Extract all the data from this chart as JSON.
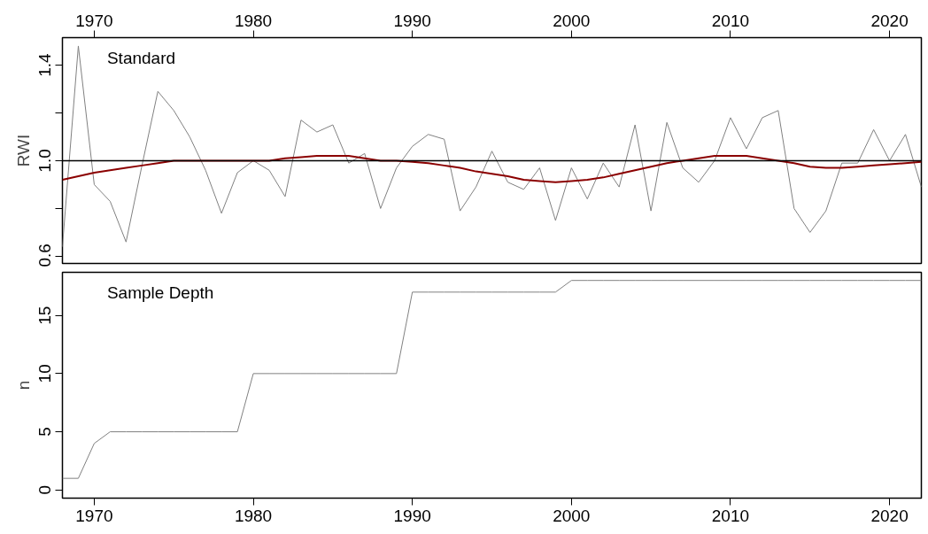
{
  "chart_data": [
    {
      "type": "line",
      "ylabel": "RWI",
      "annotations": [
        "Standard"
      ],
      "x": [
        1968,
        1969,
        1970,
        1971,
        1972,
        1973,
        1974,
        1975,
        1976,
        1977,
        1978,
        1979,
        1980,
        1981,
        1982,
        1983,
        1984,
        1985,
        1986,
        1987,
        1988,
        1989,
        1990,
        1991,
        1992,
        1993,
        1994,
        1995,
        1996,
        1997,
        1998,
        1999,
        2000,
        2001,
        2002,
        2003,
        2004,
        2005,
        2006,
        2007,
        2008,
        2009,
        2010,
        2011,
        2012,
        2013,
        2014,
        2015,
        2016,
        2017,
        2018,
        2019,
        2020,
        2021,
        2022
      ],
      "series": [
        {
          "color": "#808080",
          "values": [
            0.64,
            1.48,
            0.9,
            0.83,
            0.66,
            0.98,
            1.29,
            1.21,
            1.1,
            0.96,
            0.78,
            0.95,
            1.0,
            0.96,
            0.85,
            1.17,
            1.12,
            1.15,
            0.99,
            1.03,
            0.8,
            0.97,
            1.06,
            1.11,
            1.09,
            0.79,
            0.89,
            1.04,
            0.91,
            0.88,
            0.97,
            0.75,
            0.97,
            0.84,
            0.99,
            0.89,
            1.15,
            0.79,
            1.16,
            0.97,
            0.91,
            1.0,
            1.18,
            1.05,
            1.18,
            1.21,
            0.8,
            0.7,
            0.79,
            0.99,
            0.99,
            1.13,
            1.0,
            1.11,
            0.89
          ]
        },
        {
          "color": "#8b0000",
          "values": [
            0.92,
            0.935,
            0.95,
            0.96,
            0.97,
            0.98,
            0.99,
            1.0,
            1.0,
            1.0,
            1.0,
            1.0,
            1.0,
            1.0,
            1.01,
            1.015,
            1.02,
            1.02,
            1.02,
            1.01,
            1.0,
            1.0,
            0.995,
            0.99,
            0.98,
            0.97,
            0.955,
            0.945,
            0.935,
            0.92,
            0.915,
            0.91,
            0.915,
            0.92,
            0.93,
            0.945,
            0.96,
            0.975,
            0.99,
            1.0,
            1.01,
            1.02,
            1.02,
            1.02,
            1.01,
            1.0,
            0.99,
            0.975,
            0.97,
            0.97,
            0.975,
            0.98,
            0.985,
            0.99,
            0.995
          ]
        }
      ],
      "ref_lines": [
        {
          "axis": "y",
          "value": 1.0,
          "color": "#000000"
        }
      ],
      "xlim": [
        1968,
        2022
      ],
      "xticks": [
        1970,
        1980,
        1990,
        2000,
        2010,
        2020
      ],
      "ylim": [
        0.57,
        1.515
      ],
      "yticks": [
        0.6,
        {
          "value": 0.8,
          "label": null
        },
        {
          "value": 1.0,
          "label": "1.0"
        },
        {
          "value": 1.2,
          "label": null
        },
        1.4
      ],
      "grid": false
    },
    {
      "type": "line",
      "ylabel": "n",
      "annotations": [
        "Sample Depth"
      ],
      "x": [
        1968,
        1969,
        1970,
        1971,
        1972,
        1973,
        1974,
        1975,
        1976,
        1977,
        1978,
        1979,
        1980,
        1981,
        1982,
        1983,
        1984,
        1985,
        1986,
        1987,
        1988,
        1989,
        1990,
        1991,
        1992,
        1993,
        1994,
        1995,
        1996,
        1997,
        1998,
        1999,
        2000,
        2001,
        2002,
        2003,
        2004,
        2005,
        2006,
        2007,
        2008,
        2009,
        2010,
        2011,
        2012,
        2013,
        2014,
        2015,
        2016,
        2017,
        2018,
        2019,
        2020,
        2021,
        2022
      ],
      "series": [
        {
          "color": "#808080",
          "values": [
            1,
            1,
            4,
            5,
            5,
            5,
            5,
            5,
            5,
            5,
            5,
            5,
            10,
            10,
            10,
            10,
            10,
            10,
            10,
            10,
            10,
            10,
            17,
            17,
            17,
            17,
            17,
            17,
            17,
            17,
            17,
            17,
            18,
            18,
            18,
            18,
            18,
            18,
            18,
            18,
            18,
            18,
            18,
            18,
            18,
            18,
            18,
            18,
            18,
            18,
            18,
            18,
            18,
            18,
            18
          ]
        }
      ],
      "xlim": [
        1968,
        2022
      ],
      "xticks": [
        1970,
        1980,
        1990,
        2000,
        2010,
        2020
      ],
      "ylim": [
        -0.7,
        18.7
      ],
      "yticks": [
        0,
        5,
        10,
        15
      ],
      "grid": false
    }
  ]
}
